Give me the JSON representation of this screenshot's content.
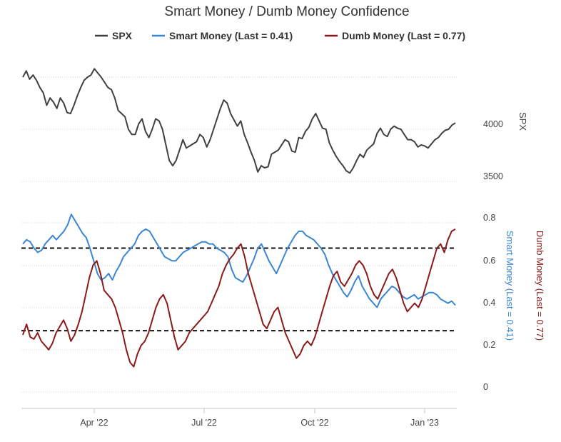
{
  "chart_data": {
    "type": "line",
    "title": "Smart Money / Dumb Money Confidence",
    "legend": [
      {
        "label": "SPX",
        "color": "#404040"
      },
      {
        "label": "Smart Money (Last = 0.41)",
        "color": "#3b86d3"
      },
      {
        "label": "Dumb Money (Last = 0.77)",
        "color": "#8b1a1a"
      }
    ],
    "x_ticks": [
      "Apr '22",
      "Jul '22",
      "Oct '22",
      "Jan '23"
    ],
    "top_panel": {
      "ylabel": "SPX",
      "y_ticks": [
        3500,
        4000
      ],
      "ylim": [
        3500,
        4600
      ],
      "series": {
        "name": "SPX",
        "values": [
          4500,
          4560,
          4480,
          4520,
          4470,
          4400,
          4350,
          4230,
          4300,
          4260,
          4200,
          4300,
          4250,
          4160,
          4150,
          4230,
          4320,
          4400,
          4470,
          4500,
          4520,
          4580,
          4540,
          4500,
          4450,
          4400,
          4380,
          4300,
          4180,
          4150,
          4120,
          4000,
          3950,
          3950,
          4050,
          4100,
          3980,
          3920,
          4000,
          4100,
          4080,
          4000,
          3850,
          3700,
          3650,
          3700,
          3800,
          3900,
          3820,
          3840,
          3860,
          3880,
          3950,
          3920,
          3830,
          3900,
          4000,
          4100,
          4200,
          4280,
          4250,
          4150,
          4090,
          4030,
          4080,
          3950,
          3870,
          3780,
          3700,
          3590,
          3650,
          3630,
          3640,
          3760,
          3780,
          3800,
          3850,
          3900,
          3880,
          3790,
          3780,
          3920,
          3910,
          3980,
          4020,
          4100,
          4150,
          4080,
          4010,
          4000,
          3870,
          3800,
          3740,
          3690,
          3650,
          3600,
          3580,
          3630,
          3700,
          3760,
          3730,
          3800,
          3830,
          3860,
          3960,
          4010,
          3950,
          3930,
          4000,
          4030,
          4010,
          4000,
          3950,
          3900,
          3900,
          3880,
          3830,
          3850,
          3840,
          3820,
          3860,
          3900,
          3920,
          3960,
          3990,
          4000,
          4040,
          4060
        ]
      }
    },
    "bottom_panel": {
      "y_ticks": [
        0,
        0.2,
        0.4,
        0.6,
        0.8
      ],
      "ylim": [
        -0.05,
        0.82
      ],
      "left_label": "Smart Money (Last = 0.41)",
      "right_label": "Dumb Money (Last = 0.77)",
      "reference_lines": [
        0.68,
        0.29
      ],
      "series": [
        {
          "name": "Smart Money",
          "values": [
            0.7,
            0.72,
            0.71,
            0.68,
            0.66,
            0.67,
            0.7,
            0.72,
            0.74,
            0.72,
            0.74,
            0.76,
            0.79,
            0.84,
            0.81,
            0.78,
            0.75,
            0.73,
            0.68,
            0.62,
            0.56,
            0.53,
            0.54,
            0.56,
            0.53,
            0.57,
            0.6,
            0.64,
            0.66,
            0.68,
            0.7,
            0.74,
            0.76,
            0.77,
            0.76,
            0.73,
            0.7,
            0.67,
            0.64,
            0.63,
            0.62,
            0.62,
            0.64,
            0.66,
            0.67,
            0.68,
            0.69,
            0.7,
            0.71,
            0.71,
            0.7,
            0.7,
            0.68,
            0.67,
            0.66,
            0.64,
            0.58,
            0.54,
            0.53,
            0.52,
            0.55,
            0.59,
            0.63,
            0.68,
            0.7,
            0.66,
            0.62,
            0.59,
            0.56,
            0.6,
            0.64,
            0.68,
            0.71,
            0.74,
            0.76,
            0.76,
            0.74,
            0.73,
            0.72,
            0.7,
            0.68,
            0.65,
            0.6,
            0.56,
            0.53,
            0.5,
            0.47,
            0.45,
            0.48,
            0.52,
            0.55,
            0.5,
            0.47,
            0.44,
            0.42,
            0.4,
            0.44,
            0.46,
            0.48,
            0.5,
            0.49,
            0.47,
            0.45,
            0.44,
            0.45,
            0.46,
            0.44,
            0.45,
            0.46,
            0.47,
            0.47,
            0.46,
            0.44,
            0.43,
            0.42,
            0.43,
            0.41
          ]
        },
        {
          "name": "Dumb Money",
          "values": [
            0.27,
            0.32,
            0.26,
            0.25,
            0.28,
            0.24,
            0.22,
            0.2,
            0.23,
            0.28,
            0.31,
            0.34,
            0.3,
            0.24,
            0.27,
            0.32,
            0.38,
            0.46,
            0.54,
            0.6,
            0.62,
            0.56,
            0.48,
            0.46,
            0.44,
            0.4,
            0.34,
            0.28,
            0.2,
            0.14,
            0.12,
            0.18,
            0.22,
            0.24,
            0.28,
            0.34,
            0.4,
            0.44,
            0.46,
            0.42,
            0.34,
            0.26,
            0.2,
            0.22,
            0.24,
            0.28,
            0.3,
            0.32,
            0.34,
            0.36,
            0.38,
            0.42,
            0.46,
            0.5,
            0.56,
            0.6,
            0.63,
            0.65,
            0.68,
            0.7,
            0.64,
            0.56,
            0.5,
            0.44,
            0.38,
            0.32,
            0.3,
            0.34,
            0.38,
            0.4,
            0.34,
            0.28,
            0.24,
            0.2,
            0.16,
            0.18,
            0.22,
            0.24,
            0.22,
            0.26,
            0.32,
            0.38,
            0.44,
            0.5,
            0.55,
            0.57,
            0.52,
            0.5,
            0.53,
            0.56,
            0.6,
            0.62,
            0.6,
            0.56,
            0.5,
            0.46,
            0.44,
            0.48,
            0.52,
            0.56,
            0.58,
            0.54,
            0.48,
            0.42,
            0.38,
            0.4,
            0.42,
            0.4,
            0.44,
            0.5,
            0.56,
            0.62,
            0.68,
            0.7,
            0.66,
            0.72,
            0.76,
            0.77
          ]
        }
      ]
    }
  }
}
